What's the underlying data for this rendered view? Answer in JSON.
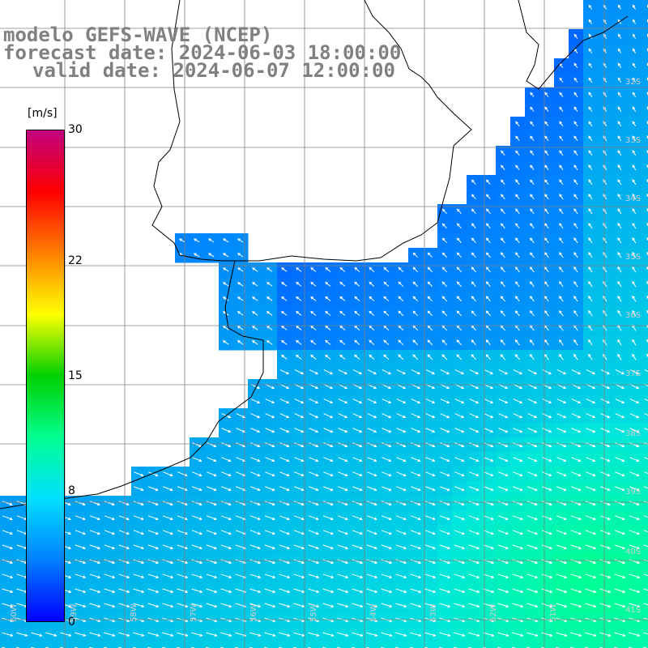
{
  "title": {
    "model": "modelo GEFS-WAVE (NCEP)",
    "forecast": "forecast date: 2024-06-03 18:00:00",
    "valid": "valid date: 2024-06-07 12:00:00"
  },
  "colorbar": {
    "units": "[m/s]",
    "min": 0,
    "max": 30,
    "ticks": [
      "30",
      "22",
      "15",
      "8",
      "0"
    ],
    "stops": [
      "#0000ff",
      "#0080ff",
      "#00e0ff",
      "#00ff90",
      "#00d000",
      "#ffff00",
      "#ff8000",
      "#ff0000",
      "#c00080"
    ]
  },
  "map": {
    "lat_labels": [
      "32S",
      "33S",
      "34S",
      "35S",
      "36S",
      "37S",
      "38S",
      "39S",
      "40S",
      "41S"
    ],
    "lon_labels": [
      "60W",
      "59W",
      "58W",
      "57W",
      "56W",
      "55W",
      "54W",
      "53W",
      "52W",
      "51W"
    ],
    "land_color": "#ffffff",
    "grid_color": "#808080",
    "arrow_color": "#ffffff"
  }
}
